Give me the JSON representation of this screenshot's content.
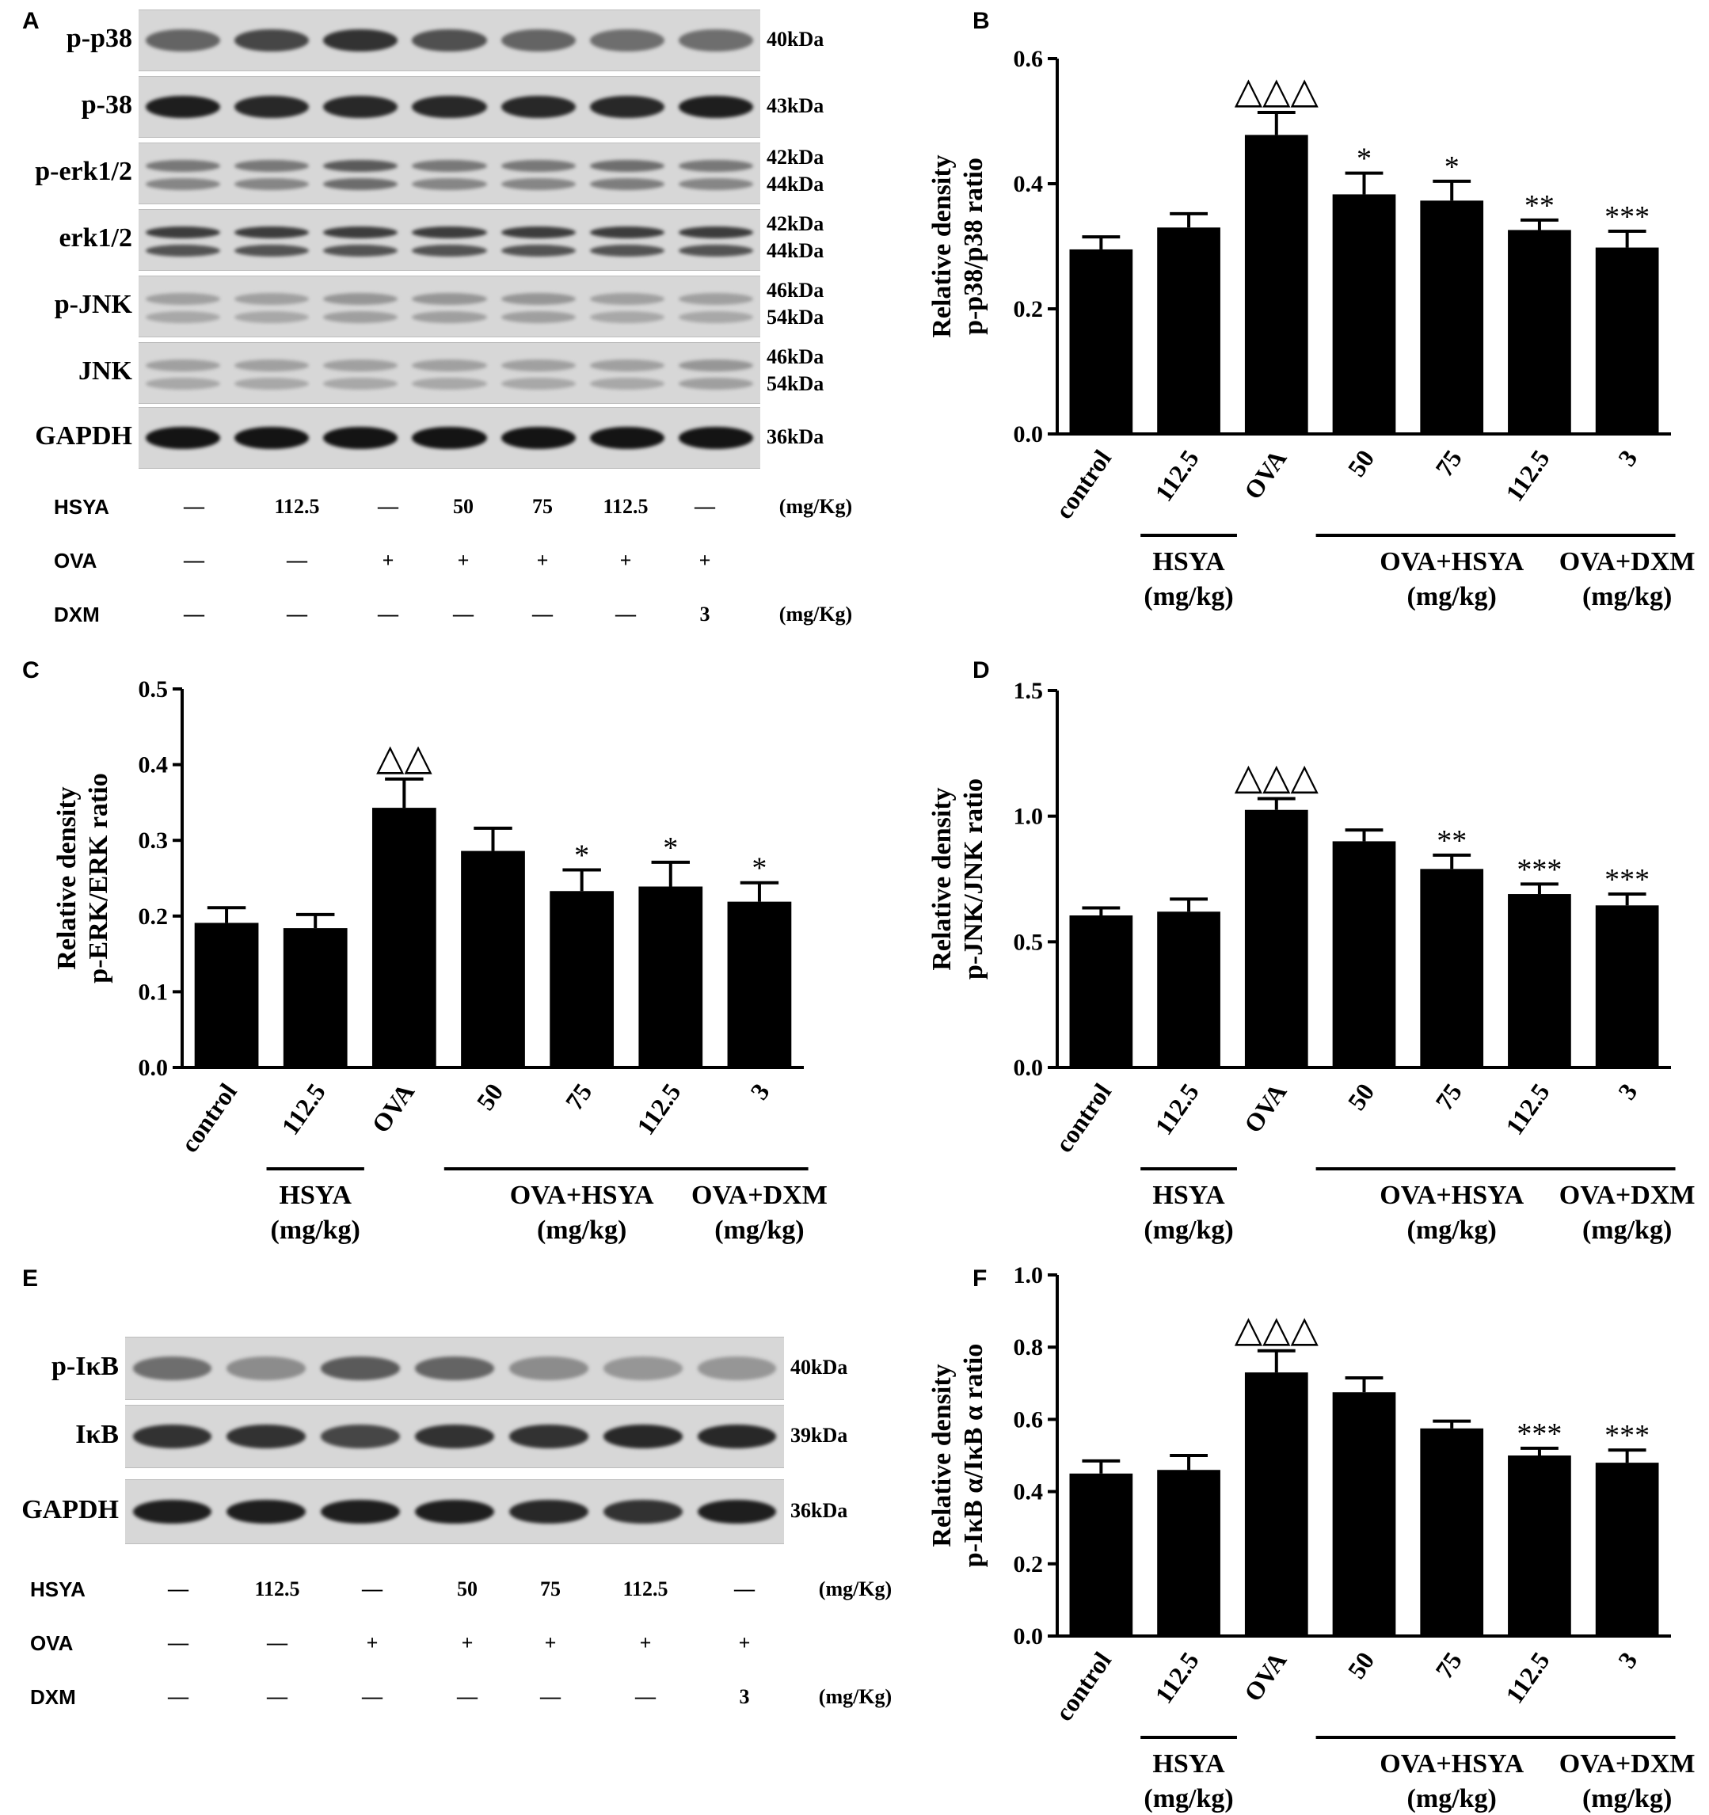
{
  "panels": {
    "A": "A",
    "B": "B",
    "C": "C",
    "D": "D",
    "E": "E",
    "F": "F"
  },
  "blot_A": {
    "rows": [
      {
        "label": "p-p38",
        "kda": [
          "40kDa"
        ]
      },
      {
        "label": "p-38",
        "kda": [
          "43kDa"
        ]
      },
      {
        "label": "p-erk1/2",
        "kda": [
          "42kDa",
          "44kDa"
        ]
      },
      {
        "label": "erk1/2",
        "kda": [
          "42kDa",
          "44kDa"
        ]
      },
      {
        "label": "p-JNK",
        "kda": [
          "46kDa",
          "54kDa"
        ]
      },
      {
        "label": "JNK",
        "kda": [
          "46kDa",
          "54kDa"
        ]
      },
      {
        "label": "GAPDH",
        "kda": [
          "36kDa"
        ]
      }
    ],
    "band_intensity": [
      [
        0.55,
        0.7,
        0.8,
        0.65,
        0.55,
        0.5,
        0.5
      ],
      [
        0.9,
        0.85,
        0.85,
        0.85,
        0.85,
        0.85,
        0.9
      ],
      [
        0.45,
        0.45,
        0.6,
        0.45,
        0.45,
        0.5,
        0.45
      ],
      [
        0.75,
        0.75,
        0.75,
        0.75,
        0.75,
        0.75,
        0.75
      ],
      [
        0.25,
        0.25,
        0.3,
        0.3,
        0.3,
        0.25,
        0.25
      ],
      [
        0.25,
        0.25,
        0.25,
        0.25,
        0.25,
        0.25,
        0.3
      ],
      [
        0.95,
        0.95,
        0.95,
        0.95,
        0.95,
        0.95,
        0.95
      ]
    ],
    "treatment": {
      "HSYA": {
        "label": "HSYA",
        "values": [
          "—",
          "112.5",
          "—",
          "50",
          "75",
          "112.5",
          "—"
        ],
        "unit": "(mg/Kg)"
      },
      "OVA": {
        "label": "OVA",
        "values": [
          "—",
          "—",
          "+",
          "+",
          "+",
          "+",
          "+"
        ],
        "unit": ""
      },
      "DXM": {
        "label": "DXM",
        "values": [
          "—",
          "—",
          "—",
          "—",
          "—",
          "—",
          "3"
        ],
        "unit": "(mg/Kg)"
      }
    }
  },
  "blot_E": {
    "rows": [
      {
        "label": "p-IκB",
        "kda": [
          "40kDa"
        ]
      },
      {
        "label": "IκB",
        "kda": [
          "39kDa"
        ]
      },
      {
        "label": "GAPDH",
        "kda": [
          "36kDa"
        ]
      }
    ],
    "band_intensity": [
      [
        0.5,
        0.35,
        0.6,
        0.55,
        0.35,
        0.3,
        0.3
      ],
      [
        0.8,
        0.8,
        0.7,
        0.8,
        0.8,
        0.85,
        0.85
      ],
      [
        0.9,
        0.9,
        0.9,
        0.9,
        0.85,
        0.8,
        0.9
      ]
    ],
    "treatment": {
      "HSYA": {
        "label": "HSYA",
        "values": [
          "—",
          "112.5",
          "—",
          "50",
          "75",
          "112.5",
          "—"
        ],
        "unit": "(mg/Kg)"
      },
      "OVA": {
        "label": "OVA",
        "values": [
          "—",
          "—",
          "+",
          "+",
          "+",
          "+",
          "+"
        ],
        "unit": ""
      },
      "DXM": {
        "label": "DXM",
        "values": [
          "—",
          "—",
          "—",
          "—",
          "—",
          "—",
          "3"
        ],
        "unit": "(mg/Kg)"
      }
    }
  },
  "chart_data": [
    {
      "panel": "B",
      "type": "bar",
      "categories": [
        "control",
        "112.5",
        "OVA",
        "50",
        "75",
        "112.5",
        "3"
      ],
      "values": [
        0.295,
        0.33,
        0.478,
        0.383,
        0.373,
        0.326,
        0.298
      ],
      "errors": [
        0.02,
        0.022,
        0.036,
        0.034,
        0.031,
        0.016,
        0.026
      ],
      "annotations": [
        "",
        "",
        "△△△",
        "*",
        "*",
        "**",
        "***"
      ],
      "ylabel": [
        "Relative density",
        "p-p38/p38 ratio"
      ],
      "ylim": [
        0,
        0.6
      ],
      "yticks": [
        "0.0",
        "0.2",
        "0.4",
        "0.6"
      ],
      "groups": [
        {
          "label": [
            "HSYA",
            "(mg/kg)"
          ],
          "from": 1,
          "to": 1
        },
        {
          "label": [
            "OVA+HSYA",
            "(mg/kg)"
          ],
          "from": 3,
          "to": 5
        },
        {
          "label": [
            "OVA+DXM",
            "(mg/kg)"
          ],
          "from": 6,
          "to": 6
        }
      ]
    },
    {
      "panel": "C",
      "type": "bar",
      "categories": [
        "control",
        "112.5",
        "OVA",
        "50",
        "75",
        "112.5",
        "3"
      ],
      "values": [
        0.191,
        0.184,
        0.343,
        0.286,
        0.233,
        0.239,
        0.219
      ],
      "errors": [
        0.02,
        0.018,
        0.038,
        0.03,
        0.028,
        0.032,
        0.025
      ],
      "annotations": [
        "",
        "",
        "△△",
        "",
        "*",
        "*",
        "*"
      ],
      "ylabel": [
        "Relative density",
        "p-ERK/ERK ratio"
      ],
      "ylim": [
        0,
        0.5
      ],
      "yticks": [
        "0.0",
        "0.1",
        "0.2",
        "0.3",
        "0.4",
        "0.5"
      ],
      "groups": [
        {
          "label": [
            "HSYA",
            "(mg/kg)"
          ],
          "from": 1,
          "to": 1
        },
        {
          "label": [
            "OVA+HSYA",
            "(mg/kg)"
          ],
          "from": 3,
          "to": 5
        },
        {
          "label": [
            "OVA+DXM",
            "(mg/kg)"
          ],
          "from": 6,
          "to": 6
        }
      ]
    },
    {
      "panel": "D",
      "type": "bar",
      "categories": [
        "control",
        "112.5",
        "OVA",
        "50",
        "75",
        "112.5",
        "3"
      ],
      "values": [
        0.605,
        0.62,
        1.025,
        0.9,
        0.79,
        0.69,
        0.645
      ],
      "errors": [
        0.03,
        0.05,
        0.045,
        0.045,
        0.055,
        0.04,
        0.045
      ],
      "annotations": [
        "",
        "",
        "△△△",
        "",
        "**",
        "***",
        "***"
      ],
      "ylabel": [
        "Relative density",
        "p-JNK/JNK ratio"
      ],
      "ylim": [
        0,
        1.5
      ],
      "yticks": [
        "0.0",
        "0.5",
        "1.0",
        "1.5"
      ],
      "groups": [
        {
          "label": [
            "HSYA",
            "(mg/kg)"
          ],
          "from": 1,
          "to": 1
        },
        {
          "label": [
            "OVA+HSYA",
            "(mg/kg)"
          ],
          "from": 3,
          "to": 5
        },
        {
          "label": [
            "OVA+DXM",
            "(mg/kg)"
          ],
          "from": 6,
          "to": 6
        }
      ]
    },
    {
      "panel": "F",
      "type": "bar",
      "categories": [
        "control",
        "112.5",
        "OVA",
        "50",
        "75",
        "112.5",
        "3"
      ],
      "values": [
        0.45,
        0.46,
        0.73,
        0.675,
        0.575,
        0.5,
        0.48
      ],
      "errors": [
        0.035,
        0.04,
        0.06,
        0.04,
        0.02,
        0.02,
        0.035
      ],
      "annotations": [
        "",
        "",
        "△△△",
        "",
        "",
        "***",
        "***"
      ],
      "ylabel": [
        "Relative density",
        "p-IκB α/IκB α ratio"
      ],
      "ylim": [
        0,
        1.0
      ],
      "yticks": [
        "0.0",
        "0.2",
        "0.4",
        "0.6",
        "0.8",
        "1.0"
      ],
      "groups": [
        {
          "label": [
            "HSYA",
            "(mg/kg)"
          ],
          "from": 1,
          "to": 1
        },
        {
          "label": [
            "OVA+HSYA",
            "(mg/kg)"
          ],
          "from": 3,
          "to": 5
        },
        {
          "label": [
            "OVA+DXM",
            "(mg/kg)"
          ],
          "from": 6,
          "to": 6
        }
      ]
    }
  ]
}
